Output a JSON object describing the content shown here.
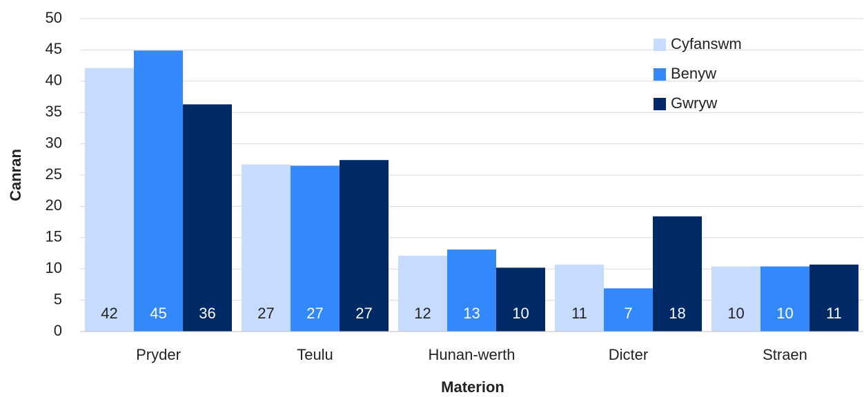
{
  "chart_data": {
    "type": "bar",
    "x_label": "Materion",
    "y_label": "Canran",
    "categories": [
      "Pryder",
      "Teulu",
      "Hunan-werth",
      "Dicter",
      "Straen"
    ],
    "series": [
      {
        "name": "Cyfanswm",
        "color": "#c6dbfd",
        "values": [
          42.1,
          26.7,
          12.1,
          10.7,
          10.4
        ],
        "value_labels": [
          "42",
          "27",
          "12",
          "11",
          "10"
        ]
      },
      {
        "name": "Benyw",
        "color": "#3388fc",
        "values": [
          44.9,
          26.5,
          13.1,
          6.9,
          10.4
        ],
        "value_labels": [
          "45",
          "27",
          "13",
          "7",
          "10"
        ]
      },
      {
        "name": "Gwryw",
        "color": "#002a66",
        "values": [
          36.3,
          27.4,
          10.2,
          18.4,
          10.7
        ],
        "value_labels": [
          "36",
          "27",
          "10",
          "18",
          "11"
        ]
      }
    ],
    "ylim": [
      0,
      50
    ],
    "yticks": [
      0,
      5,
      10,
      15,
      20,
      25,
      30,
      35,
      40,
      45,
      50
    ],
    "grid": true,
    "legend": "top-right"
  }
}
